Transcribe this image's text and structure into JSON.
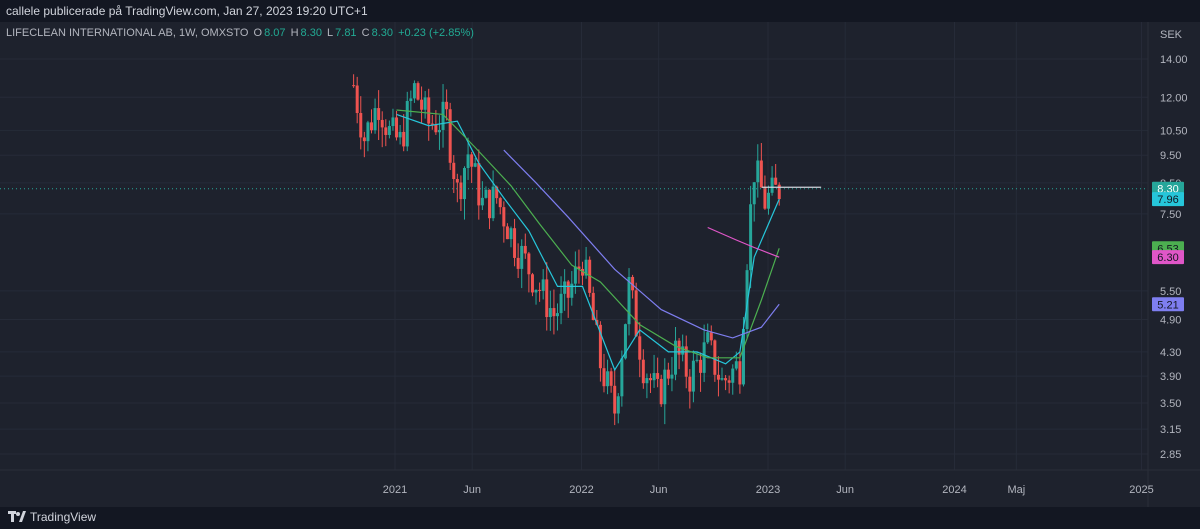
{
  "header": {
    "publish_line": "callele publicerade på TradingView.com, Jan 27, 2023 19:20 UTC+1"
  },
  "legend": {
    "symbol": "LIFECLEAN INTERNATIONAL AB, 1W, OMXSTO",
    "o_label": "O",
    "o_value": "8.07",
    "h_label": "H",
    "h_value": "8.30",
    "l_label": "L",
    "l_value": "7.81",
    "c_label": "C",
    "c_value": "8.30",
    "change": "+0.23 (+2.85%)"
  },
  "footer": {
    "brand": "TradingView"
  },
  "colors": {
    "up": "#26a69a",
    "down": "#ef5350",
    "ma_fast": "#26c6da",
    "ma_mid": "#4caf50",
    "ma_slow": "#7e7ef0",
    "ma_pink": "#e056c8",
    "resistance": "#d1d4dc"
  },
  "chart_data": {
    "type": "candlestick",
    "y_axis_unit": "SEK",
    "y_scale": "log",
    "ylim": [
      2.6,
      15.0
    ],
    "y_ticks": [
      2.85,
      3.15,
      3.5,
      3.9,
      4.3,
      4.9,
      5.5,
      7.5,
      8.5,
      9.5,
      10.5,
      12.0,
      14.0
    ],
    "x_labels": [
      "2021",
      "Jun",
      "2022",
      "Jun",
      "2023",
      "Jun",
      "2024",
      "Maj",
      "2025"
    ],
    "x_range": [
      "2020-06-01",
      "2025-01-10"
    ],
    "current_price": 8.3,
    "price_labels": [
      {
        "value": "8.30",
        "y": 8.3,
        "bg": "#26a69a",
        "fg": "#ffffff"
      },
      {
        "value": "7.96",
        "y": 7.96,
        "bg": "#26c6da",
        "fg": "#131722"
      },
      {
        "value": "6.53",
        "y": 6.53,
        "bg": "#4caf50",
        "fg": "#131722"
      },
      {
        "value": "6.30",
        "y": 6.3,
        "bg": "#e056c8",
        "fg": "#131722"
      },
      {
        "value": "5.21",
        "y": 5.21,
        "bg": "#7e7ef0",
        "fg": "#131722"
      }
    ],
    "resistance_line": {
      "y": 8.35,
      "x_start": "2022-12-20",
      "x_end": "2023-04-15"
    },
    "price_path": [
      [
        "2020-10-12",
        12.6
      ],
      [
        "2020-11-02",
        10.2
      ],
      [
        "2020-11-30",
        11.8
      ],
      [
        "2020-12-21",
        10.4
      ],
      [
        "2021-01-11",
        10.0
      ],
      [
        "2021-02-08",
        12.4
      ],
      [
        "2021-03-08",
        10.8
      ],
      [
        "2021-04-12",
        11.0
      ],
      [
        "2021-05-03",
        8.2
      ],
      [
        "2021-05-24",
        9.6
      ],
      [
        "2021-06-21",
        7.8
      ],
      [
        "2021-07-19",
        8.0
      ],
      [
        "2021-08-23",
        6.7
      ],
      [
        "2021-10-04",
        5.7
      ],
      [
        "2021-11-08",
        5.0
      ],
      [
        "2021-12-06",
        5.4
      ],
      [
        "2022-01-03",
        6.3
      ],
      [
        "2022-02-07",
        4.1
      ],
      [
        "2022-03-07",
        3.4
      ],
      [
        "2022-04-04",
        5.6
      ],
      [
        "2022-05-02",
        4.1
      ],
      [
        "2022-05-30",
        3.6
      ],
      [
        "2022-07-04",
        4.3
      ],
      [
        "2022-08-01",
        3.9
      ],
      [
        "2022-09-05",
        4.4
      ],
      [
        "2022-10-03",
        3.8
      ],
      [
        "2022-11-07",
        4.1
      ],
      [
        "2022-11-21",
        6.4
      ],
      [
        "2022-12-05",
        9.0
      ],
      [
        "2022-12-26",
        7.9
      ],
      [
        "2023-01-23",
        8.3
      ]
    ],
    "series": [
      {
        "key": "ma_fast",
        "points": [
          [
            "2021-01-04",
            11.2
          ],
          [
            "2021-03-08",
            10.7
          ],
          [
            "2021-05-03",
            10.9
          ],
          [
            "2021-06-14",
            9.2
          ],
          [
            "2021-08-02",
            8.0
          ],
          [
            "2021-09-20",
            7.0
          ],
          [
            "2021-11-15",
            5.6
          ],
          [
            "2022-01-03",
            5.6
          ],
          [
            "2022-03-07",
            4.0
          ],
          [
            "2022-04-25",
            4.7
          ],
          [
            "2022-06-20",
            4.3
          ],
          [
            "2022-08-15",
            4.3
          ],
          [
            "2022-10-10",
            4.1
          ],
          [
            "2022-11-07",
            4.3
          ],
          [
            "2022-12-05",
            6.3
          ],
          [
            "2023-01-23",
            7.96
          ]
        ]
      },
      {
        "key": "ma_mid",
        "points": [
          [
            "2021-01-04",
            11.4
          ],
          [
            "2021-04-05",
            11.2
          ],
          [
            "2021-06-07",
            9.8
          ],
          [
            "2021-08-16",
            8.4
          ],
          [
            "2021-10-11",
            7.2
          ],
          [
            "2021-12-13",
            6.1
          ],
          [
            "2022-02-07",
            5.7
          ],
          [
            "2022-04-25",
            4.8
          ],
          [
            "2022-07-04",
            4.4
          ],
          [
            "2022-09-05",
            4.2
          ],
          [
            "2022-11-07",
            4.2
          ],
          [
            "2022-12-19",
            5.3
          ],
          [
            "2023-01-23",
            6.53
          ]
        ]
      },
      {
        "key": "ma_slow",
        "points": [
          [
            "2021-08-02",
            9.7
          ],
          [
            "2021-10-04",
            8.5
          ],
          [
            "2021-12-06",
            7.4
          ],
          [
            "2022-03-07",
            6.0
          ],
          [
            "2022-06-06",
            5.1
          ],
          [
            "2022-08-29",
            4.7
          ],
          [
            "2022-10-24",
            4.55
          ],
          [
            "2022-12-19",
            4.75
          ],
          [
            "2023-01-23",
            5.21
          ]
        ]
      },
      {
        "key": "ma_pink",
        "points": [
          [
            "2022-09-05",
            7.1
          ],
          [
            "2022-10-31",
            6.75
          ],
          [
            "2022-12-05",
            6.55
          ],
          [
            "2023-01-23",
            6.3
          ]
        ]
      }
    ]
  }
}
